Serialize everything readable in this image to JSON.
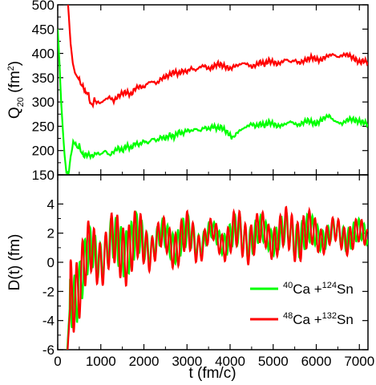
{
  "chart_data": [
    {
      "type": "line",
      "panel": "top",
      "ylabel_main": "Q",
      "ylabel_sub": "20",
      "ylabel_unit": "(fm",
      "ylabel_unit_sup": "2",
      "ylabel_close": ")",
      "xlim": [
        0,
        7200
      ],
      "ylim": [
        150,
        500
      ],
      "yticks": [
        150,
        200,
        250,
        300,
        350,
        400,
        450,
        500
      ],
      "xticks": [
        0,
        1000,
        2000,
        3000,
        4000,
        5000,
        6000,
        7000
      ],
      "series": [
        {
          "name_id": "ca40",
          "color": "#00ff00",
          "points": [
            [
              0,
              450
            ],
            [
              40,
              380
            ],
            [
              80,
              300
            ],
            [
              120,
              240
            ],
            [
              160,
              190
            ],
            [
              200,
              155
            ],
            [
              240,
              150
            ],
            [
              280,
              170
            ],
            [
              320,
              200
            ],
            [
              360,
              215
            ],
            [
              400,
              218
            ],
            [
              450,
              205
            ],
            [
              500,
              210
            ],
            [
              550,
              196
            ],
            [
              600,
              190
            ],
            [
              700,
              192
            ],
            [
              800,
              188
            ],
            [
              900,
              195
            ],
            [
              1000,
              192
            ],
            [
              1100,
              200
            ],
            [
              1200,
              190
            ],
            [
              1300,
              198
            ],
            [
              1400,
              205
            ],
            [
              1500,
              200
            ],
            [
              1600,
              210
            ],
            [
              1700,
              205
            ],
            [
              1800,
              215
            ],
            [
              1900,
              212
            ],
            [
              2000,
              220
            ],
            [
              2100,
              215
            ],
            [
              2200,
              225
            ],
            [
              2300,
              220
            ],
            [
              2400,
              228
            ],
            [
              2500,
              225
            ],
            [
              2600,
              232
            ],
            [
              2700,
              228
            ],
            [
              2800,
              238
            ],
            [
              2900,
              235
            ],
            [
              3000,
              242
            ],
            [
              3100,
              240
            ],
            [
              3200,
              245
            ],
            [
              3300,
              240
            ],
            [
              3400,
              248
            ],
            [
              3500,
              244
            ],
            [
              3600,
              250
            ],
            [
              3700,
              246
            ],
            [
              3800,
              248
            ],
            [
              3900,
              240
            ],
            [
              4000,
              232
            ],
            [
              4050,
              226
            ],
            [
              4100,
              230
            ],
            [
              4200,
              240
            ],
            [
              4300,
              245
            ],
            [
              4400,
              250
            ],
            [
              4500,
              255
            ],
            [
              4600,
              250
            ],
            [
              4700,
              255
            ],
            [
              4800,
              252
            ],
            [
              4900,
              258
            ],
            [
              5000,
              255
            ],
            [
              5100,
              250
            ],
            [
              5200,
              252
            ],
            [
              5300,
              255
            ],
            [
              5400,
              260
            ],
            [
              5500,
              255
            ],
            [
              5600,
              252
            ],
            [
              5700,
              258
            ],
            [
              5800,
              262
            ],
            [
              5900,
              258
            ],
            [
              6000,
              255
            ],
            [
              6100,
              262
            ],
            [
              6200,
              268
            ],
            [
              6300,
              272
            ],
            [
              6400,
              262
            ],
            [
              6500,
              258
            ],
            [
              6600,
              255
            ],
            [
              6700,
              262
            ],
            [
              6800,
              265
            ],
            [
              6900,
              262
            ],
            [
              7000,
              260
            ],
            [
              7100,
              258
            ],
            [
              7200,
              255
            ]
          ]
        },
        {
          "name_id": "ca48",
          "color": "#ff0000",
          "points": [
            [
              240,
              500
            ],
            [
              300,
              420
            ],
            [
              350,
              380
            ],
            [
              400,
              360
            ],
            [
              450,
              352
            ],
            [
              500,
              345
            ],
            [
              550,
              335
            ],
            [
              600,
              330
            ],
            [
              650,
              318
            ],
            [
              700,
              320
            ],
            [
              750,
              300
            ],
            [
              800,
              292
            ],
            [
              850,
              305
            ],
            [
              900,
              300
            ],
            [
              1000,
              298
            ],
            [
              1100,
              305
            ],
            [
              1200,
              310
            ],
            [
              1300,
              302
            ],
            [
              1400,
              312
            ],
            [
              1500,
              318
            ],
            [
              1600,
              320
            ],
            [
              1700,
              315
            ],
            [
              1800,
              328
            ],
            [
              1900,
              332
            ],
            [
              2000,
              330
            ],
            [
              2100,
              340
            ],
            [
              2200,
              342
            ],
            [
              2300,
              338
            ],
            [
              2400,
              348
            ],
            [
              2500,
              352
            ],
            [
              2600,
              356
            ],
            [
              2700,
              362
            ],
            [
              2800,
              358
            ],
            [
              2900,
              364
            ],
            [
              3000,
              362
            ],
            [
              3100,
              370
            ],
            [
              3200,
              365
            ],
            [
              3300,
              372
            ],
            [
              3400,
              375
            ],
            [
              3500,
              368
            ],
            [
              3600,
              372
            ],
            [
              3700,
              378
            ],
            [
              3800,
              376
            ],
            [
              3900,
              372
            ],
            [
              4000,
              368
            ],
            [
              4100,
              374
            ],
            [
              4200,
              376
            ],
            [
              4300,
              380
            ],
            [
              4400,
              378
            ],
            [
              4500,
              372
            ],
            [
              4600,
              376
            ],
            [
              4700,
              382
            ],
            [
              4800,
              378
            ],
            [
              4900,
              385
            ],
            [
              5000,
              382
            ],
            [
              5100,
              378
            ],
            [
              5200,
              382
            ],
            [
              5300,
              388
            ],
            [
              5400,
              382
            ],
            [
              5500,
              386
            ],
            [
              5600,
              380
            ],
            [
              5700,
              384
            ],
            [
              5800,
              388
            ],
            [
              5900,
              392
            ],
            [
              6000,
              388
            ],
            [
              6100,
              386
            ],
            [
              6200,
              392
            ],
            [
              6300,
              396
            ],
            [
              6400,
              398
            ],
            [
              6500,
              392
            ],
            [
              6600,
              396
            ],
            [
              6700,
              398
            ],
            [
              6800,
              394
            ],
            [
              6900,
              388
            ],
            [
              7000,
              382
            ],
            [
              7100,
              385
            ],
            [
              7200,
              382
            ]
          ]
        }
      ]
    },
    {
      "type": "line",
      "panel": "bottom",
      "xlabel": "t (fm/c)",
      "ylabel": "D(t) (fm)",
      "xlim": [
        0,
        7200
      ],
      "ylim": [
        -6,
        6
      ],
      "yticks": [
        -6,
        -4,
        -2,
        0,
        2,
        4
      ],
      "xticks": [
        0,
        1000,
        2000,
        3000,
        4000,
        5000,
        6000,
        7000
      ],
      "xtick_labels": [
        "0",
        "1000",
        "2000",
        "3000",
        "4000",
        "5000",
        "6000",
        "7000"
      ],
      "series": [
        {
          "name_id": "ca40",
          "color": "#00ff00",
          "oscillation": {
            "t_start": 220,
            "y_start": -6,
            "rise_time": 700,
            "period": 120,
            "envelope": [
              [
                300,
                2.0
              ],
              [
                1000,
                1.8
              ],
              [
                2000,
                1.6
              ],
              [
                3000,
                1.5
              ],
              [
                4000,
                1.4
              ],
              [
                5000,
                1.3
              ],
              [
                6000,
                1.1
              ],
              [
                7200,
                0.9
              ]
            ],
            "baseline": [
              [
                300,
                -2.5
              ],
              [
                800,
                0.6
              ],
              [
                1500,
                1.2
              ],
              [
                2500,
                1.5
              ],
              [
                3500,
                1.7
              ],
              [
                4500,
                1.8
              ],
              [
                5500,
                1.9
              ],
              [
                7200,
                1.9
              ]
            ]
          }
        },
        {
          "name_id": "ca48",
          "color": "#ff0000",
          "oscillation": {
            "t_start": 230,
            "y_start": -6,
            "rise_time": 650,
            "period": 135,
            "envelope": [
              [
                300,
                2.6
              ],
              [
                1000,
                2.2
              ],
              [
                2000,
                1.9
              ],
              [
                3000,
                1.8
              ],
              [
                4000,
                1.7
              ],
              [
                5000,
                1.6
              ],
              [
                6000,
                1.3
              ],
              [
                7200,
                1.0
              ]
            ],
            "baseline": [
              [
                300,
                -2.0
              ],
              [
                800,
                0.5
              ],
              [
                1500,
                1.1
              ],
              [
                2500,
                1.4
              ],
              [
                3500,
                1.6
              ],
              [
                4500,
                1.8
              ],
              [
                5500,
                1.9
              ],
              [
                7200,
                1.8
              ]
            ]
          }
        }
      ]
    }
  ],
  "legend": {
    "placement": "lower-right",
    "entries": [
      {
        "series_id": "ca40",
        "color": "#00ff00",
        "sup1": "40",
        "el1": "Ca +",
        "sup2": "124",
        "el2": "Sn"
      },
      {
        "series_id": "ca48",
        "color": "#ff0000",
        "sup1": "48",
        "el1": "Ca +",
        "sup2": "132",
        "el2": "Sn"
      }
    ]
  }
}
